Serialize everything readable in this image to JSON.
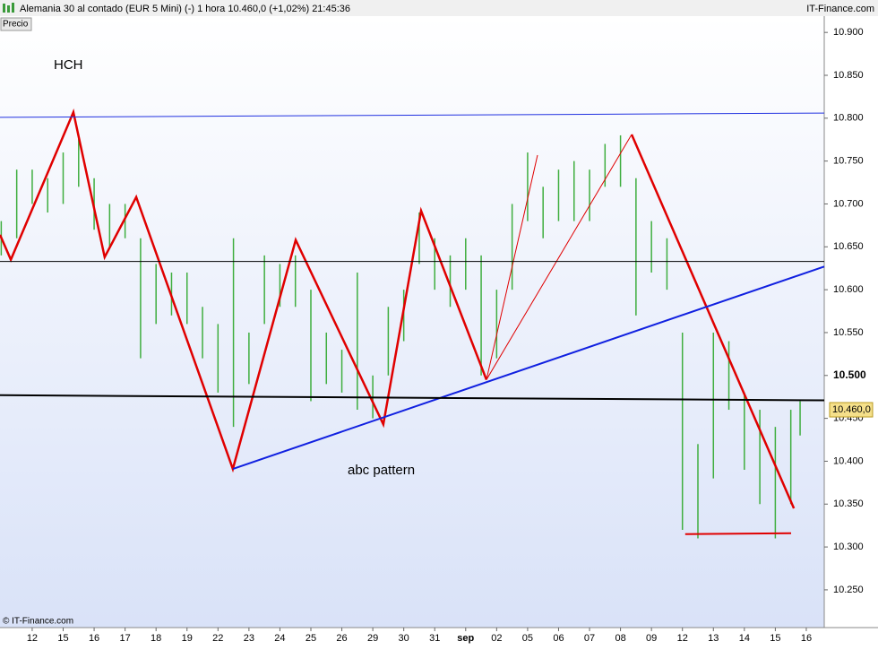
{
  "header": {
    "title": "Alemania 30 al contado (EUR 5 Mini) (-)   1 hora   10.460,0 (+1,02%)   21:45:36",
    "brand": "IT-Finance.com",
    "price_label": "Precio",
    "copyright": "© IT-Finance.com"
  },
  "chart_data": {
    "type": "range-bar",
    "annotations": [
      {
        "text": "HCH"
      },
      {
        "text": "abc  pattern"
      }
    ],
    "last_price": {
      "value": 10.46,
      "label": "10.460,0"
    },
    "xlim": [
      -1.04,
      25.58
    ],
    "xticks": [
      {
        "value": 0,
        "label": "12"
      },
      {
        "value": 1,
        "label": "15"
      },
      {
        "value": 2,
        "label": "16"
      },
      {
        "value": 3,
        "label": "17"
      },
      {
        "value": 4,
        "label": "18"
      },
      {
        "value": 5,
        "label": "19"
      },
      {
        "value": 6,
        "label": "22"
      },
      {
        "value": 7,
        "label": "23"
      },
      {
        "value": 8,
        "label": "24"
      },
      {
        "value": 9,
        "label": "25"
      },
      {
        "value": 10,
        "label": "26"
      },
      {
        "value": 11,
        "label": "29"
      },
      {
        "value": 12,
        "label": "30"
      },
      {
        "value": 13,
        "label": "31"
      },
      {
        "value": 14,
        "label": "sep"
      },
      {
        "value": 15,
        "label": "02"
      },
      {
        "value": 16,
        "label": "05"
      },
      {
        "value": 17,
        "label": "06"
      },
      {
        "value": 18,
        "label": "07"
      },
      {
        "value": 19,
        "label": "08"
      },
      {
        "value": 20,
        "label": "09"
      },
      {
        "value": 21,
        "label": "12"
      },
      {
        "value": 22,
        "label": "13"
      },
      {
        "value": 23,
        "label": "14"
      },
      {
        "value": 24,
        "label": "15"
      },
      {
        "value": 25,
        "label": "16"
      }
    ],
    "ylim": [
      10.206,
      10.919
    ],
    "yticks": [
      {
        "value": 10.25,
        "label": "10.250"
      },
      {
        "value": 10.3,
        "label": "10.300"
      },
      {
        "value": 10.35,
        "label": "10.350"
      },
      {
        "value": 10.4,
        "label": "10.400"
      },
      {
        "value": 10.45,
        "label": "10.450"
      },
      {
        "value": 10.5,
        "label": "10.500"
      },
      {
        "value": 10.55,
        "label": "10.550"
      },
      {
        "value": 10.6,
        "label": "10.600"
      },
      {
        "value": 10.65,
        "label": "10.650"
      },
      {
        "value": 10.7,
        "label": "10.700"
      },
      {
        "value": 10.75,
        "label": "10.750"
      },
      {
        "value": 10.8,
        "label": "10.800"
      },
      {
        "value": 10.85,
        "label": "10.850"
      },
      {
        "value": 10.9,
        "label": "10.900"
      }
    ],
    "bars": {
      "color": "#3fae3f",
      "x": [
        -1,
        -0.5,
        0,
        0.5,
        1,
        1.5,
        2,
        2.5,
        3,
        3.5,
        4,
        4.5,
        5,
        5.5,
        6,
        6.5,
        7,
        7.5,
        8,
        8.5,
        9,
        9.5,
        10,
        10.5,
        11,
        11.5,
        12,
        12.5,
        13,
        13.5,
        14,
        14.5,
        15,
        15.5,
        16,
        16.5,
        17,
        17.5,
        18,
        18.5,
        19,
        19.5,
        20,
        20.5,
        21,
        21.5,
        22,
        22.5,
        23,
        23.5,
        24,
        24.5,
        24.8
      ],
      "high": [
        10.68,
        10.74,
        10.74,
        10.73,
        10.76,
        10.78,
        10.73,
        10.7,
        10.7,
        10.66,
        10.63,
        10.62,
        10.62,
        10.58,
        10.56,
        10.66,
        10.55,
        10.64,
        10.63,
        10.64,
        10.6,
        10.55,
        10.53,
        10.62,
        10.5,
        10.58,
        10.6,
        10.69,
        10.66,
        10.64,
        10.66,
        10.64,
        10.6,
        10.7,
        10.76,
        10.72,
        10.74,
        10.75,
        10.74,
        10.77,
        10.78,
        10.73,
        10.68,
        10.66,
        10.55,
        10.42,
        10.55,
        10.54,
        10.48,
        10.46,
        10.44,
        10.46,
        10.47
      ],
      "low": [
        10.64,
        10.66,
        10.7,
        10.69,
        10.7,
        10.72,
        10.67,
        10.65,
        10.66,
        10.52,
        10.56,
        10.57,
        10.56,
        10.52,
        10.48,
        10.44,
        10.49,
        10.56,
        10.58,
        10.58,
        10.47,
        10.49,
        10.48,
        10.46,
        10.45,
        10.5,
        10.54,
        10.63,
        10.6,
        10.58,
        10.6,
        10.5,
        10.52,
        10.6,
        10.68,
        10.66,
        10.68,
        10.68,
        10.68,
        10.72,
        10.72,
        10.57,
        10.62,
        10.6,
        10.32,
        10.31,
        10.38,
        10.46,
        10.39,
        10.35,
        10.31,
        10.35,
        10.43
      ]
    },
    "lines": [
      {
        "color": "#e00000",
        "width": 2.5,
        "x": [
          -1.04,
          -0.69,
          1.33,
          2.34,
          3.36,
          6.48,
          8.51,
          11.34,
          12.56,
          14.67
        ],
        "y": [
          10.664,
          10.635,
          10.807,
          10.638,
          10.708,
          10.391,
          10.658,
          10.443,
          10.692,
          10.495
        ]
      },
      {
        "color": "#e00000",
        "width": 1,
        "x": [
          14.67,
          16.32
        ],
        "y": [
          10.495,
          10.757
        ]
      },
      {
        "color": "#e00000",
        "width": 1,
        "x": [
          14.67,
          19.36
        ],
        "y": [
          10.495,
          10.781
        ]
      },
      {
        "color": "#e00000",
        "width": 2.5,
        "x": [
          19.36,
          24.6
        ],
        "y": [
          10.781,
          10.345
        ]
      },
      {
        "color": "#e00000",
        "width": 2,
        "x": [
          21.09,
          24.51
        ],
        "y": [
          10.315,
          10.316
        ]
      },
      {
        "color": "#2030e0",
        "width": 1,
        "x": [
          -1.04,
          25.58
        ],
        "y": [
          10.801,
          10.806
        ]
      },
      {
        "color": "#1020e0",
        "width": 2,
        "x": [
          6.48,
          25.58
        ],
        "y": [
          10.391,
          10.627
        ]
      },
      {
        "color": "#000000",
        "width": 1,
        "x": [
          -1.04,
          25.58
        ],
        "y": [
          10.633,
          10.633
        ]
      },
      {
        "color": "#000000",
        "width": 2,
        "x": [
          -1.04,
          25.58
        ],
        "y": [
          10.477,
          10.471
        ]
      }
    ]
  }
}
